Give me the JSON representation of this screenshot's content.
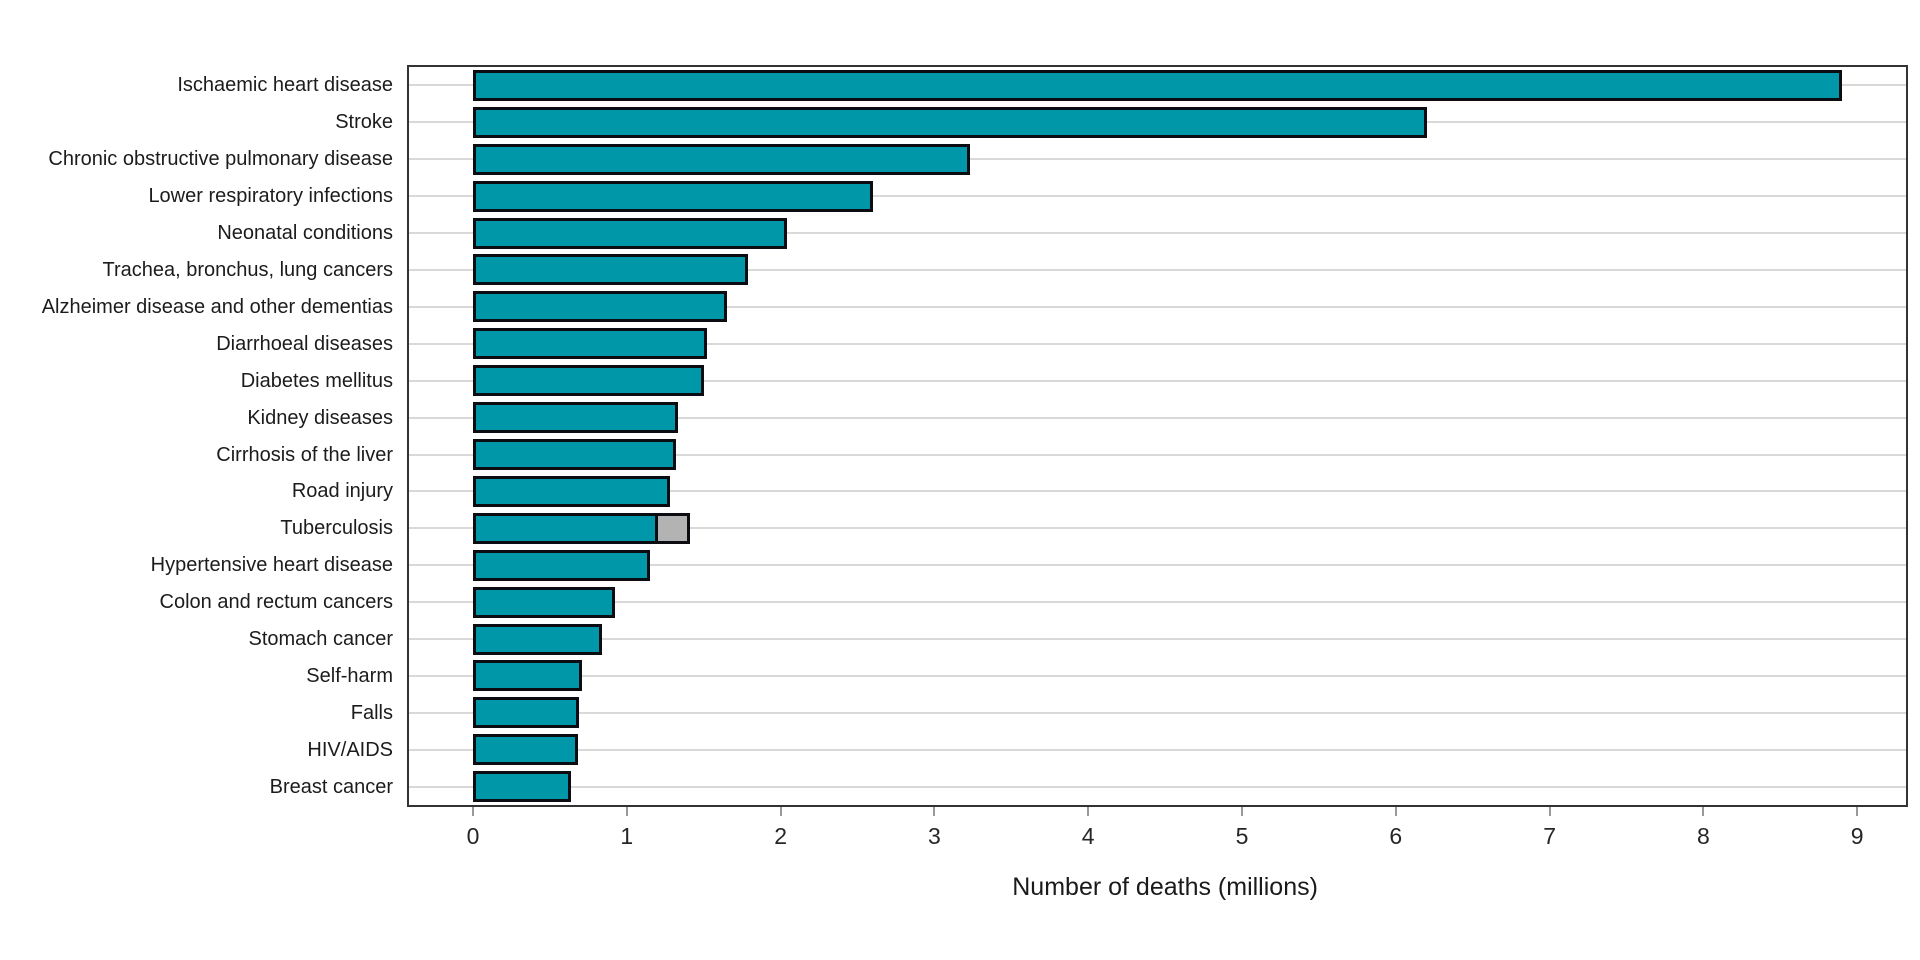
{
  "chart_data": {
    "type": "bar",
    "orientation": "horizontal",
    "title": "",
    "xlabel": "Number of deaths (millions)",
    "ylabel": "",
    "xlim": [
      0,
      9
    ],
    "xticks": [
      "0",
      "1",
      "2",
      "3",
      "4",
      "5",
      "6",
      "7",
      "8",
      "9"
    ],
    "grid": "horizontal-row-lines",
    "legend": "none",
    "categories": [
      "Ischaemic heart disease",
      "Stroke",
      "Chronic obstructive pulmonary disease",
      "Lower respiratory infections",
      "Neonatal conditions",
      "Trachea, bronchus, lung cancers",
      "Alzheimer disease and other dementias",
      "Diarrhoeal diseases",
      "Diabetes mellitus",
      "Kidney diseases",
      "Cirrhosis of the liver",
      "Road injury",
      "Tuberculosis",
      "Hypertensive heart disease",
      "Colon and rectum cancers",
      "Stomach cancer",
      "Self-harm",
      "Falls",
      "HIV/AIDS",
      "Breast cancer"
    ],
    "series": [
      {
        "name": "deaths",
        "color": "#0097a8",
        "values": [
          8.9,
          6.2,
          3.23,
          2.6,
          2.04,
          1.79,
          1.65,
          1.52,
          1.5,
          1.33,
          1.32,
          1.28,
          1.2,
          1.15,
          0.92,
          0.84,
          0.71,
          0.69,
          0.68,
          0.64
        ]
      },
      {
        "name": "additional-grey-segment",
        "color": "#b3b3b3",
        "values": [
          0,
          0,
          0,
          0,
          0,
          0,
          0,
          0,
          0,
          0,
          0,
          0,
          0.21,
          0,
          0,
          0,
          0,
          0,
          0,
          0
        ]
      }
    ],
    "colors": {
      "bar_fill": "#0097a8",
      "grey_fill": "#b3b3b3",
      "bar_border": "#0c0c13",
      "plot_border": "#333333",
      "gridline": "#d9d9d9",
      "background": "#ffffff"
    }
  }
}
